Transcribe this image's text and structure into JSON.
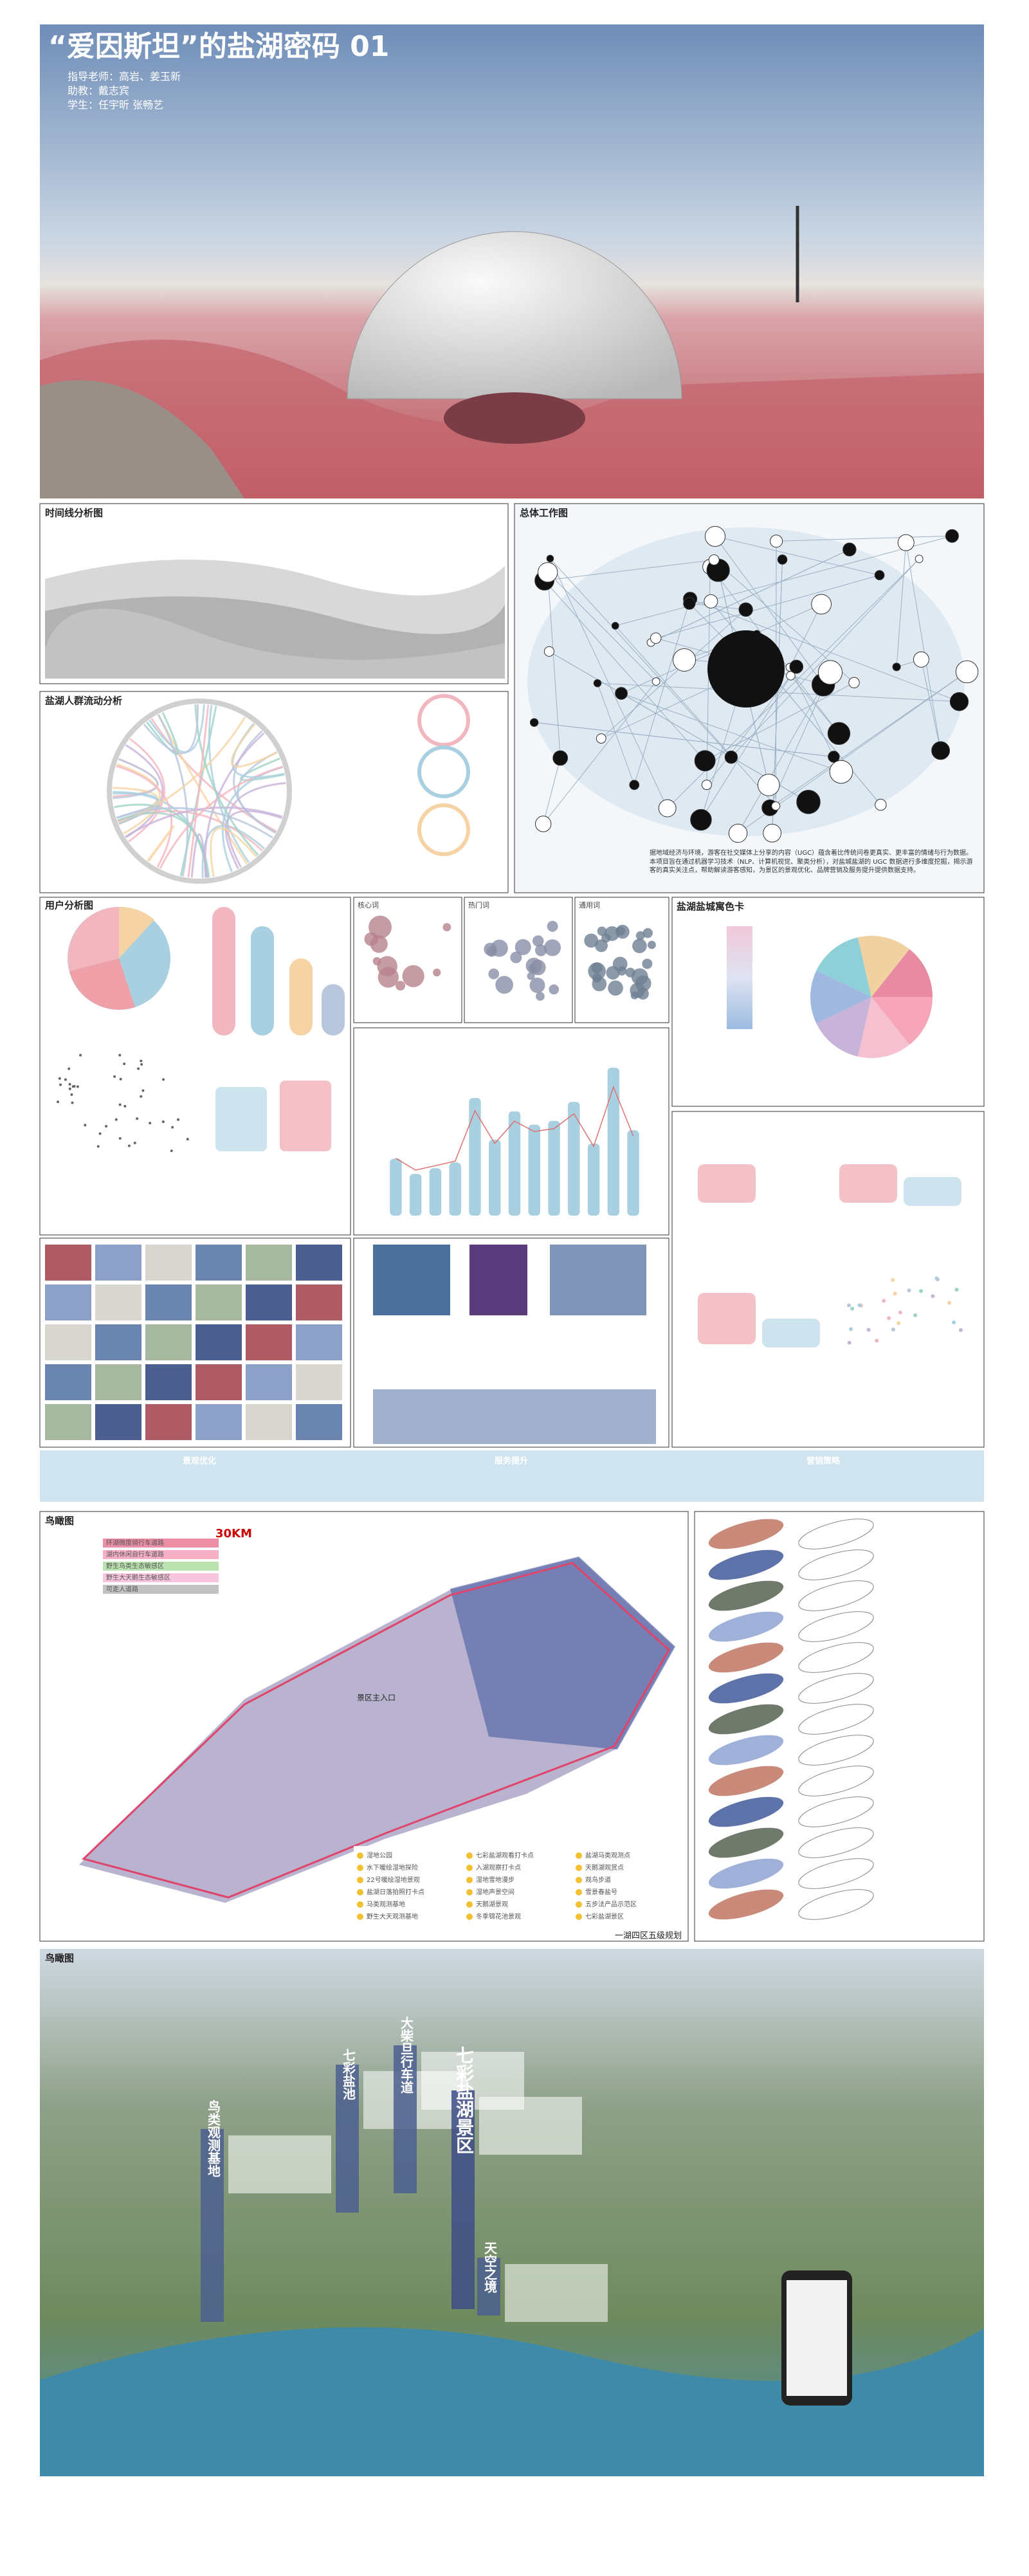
{
  "header": {
    "title": "“爱因斯坦”的盐湖密码 01",
    "credits": [
      "指导老师：高岩、姜玉新",
      "助教：戴志宾",
      "学生：任宇昕 张畅艺"
    ]
  },
  "panels": {
    "timeline": "时间线分析图",
    "crowd_flow": "盐湖人群流动分析",
    "overall": "总体工作图",
    "overall_text": "据地域经济与环境，游客在社交媒体上分享的内容（UGC）蕴含着比传统问卷更真实、更丰富的情绪与行为数据。本项目旨在通过机器学习技术（NLP、计算机视觉、聚类分析），对盐城盐湖的 UGC 数据进行多维度挖掘，揭示游客的真实关注点，帮助解读游客感知，为景区的景观优化、品牌营销及服务提升提供数据支持。",
    "user": "用户分析图",
    "core_words": "核心词",
    "hot_words": "热门词",
    "common_words": "通用词",
    "color_card": "盐湖盐城寓色卡",
    "banner": [
      "景观优化",
      "服务提升",
      "营销策略"
    ],
    "map_title": "鸟瞰图",
    "aerial_title": "鸟瞰图"
  },
  "bar_panel": {
    "values": [
      30,
      22,
      25,
      28,
      62,
      40,
      55,
      48,
      50,
      60,
      38,
      78,
      45
    ]
  },
  "map": {
    "scale": "30KM",
    "route_legend": [
      "环湖微度骑行车道路",
      "湖内休闲自行车道路",
      "野生鸟类生态敏感区",
      "野生大天鹅生态敏感区",
      "可走人道路"
    ],
    "entrance": "景区主入口",
    "legend": [
      "湿地公园",
      "水下暖绘湿地探险",
      "22号暖绘湿地景观",
      "盐湖日落拍照打卡点",
      "马类观测基地",
      "野生大天观测基地",
      "七彩盐湖观看打卡点",
      "入湖观察打卡点",
      "湿地雪地漫步",
      "湿地声景空间",
      "天鹅湖景观",
      "冬季锦花池景观",
      "盐湖马类观测点",
      "天鹅湖观赏点",
      "观鸟步道",
      "雪景春盐号",
      "五步法产品示范区",
      "七彩盐湖景区"
    ],
    "plan": "一湖四区五级规划"
  },
  "aerial": {
    "labels": [
      "鸟类观测基地",
      "七彩盐池",
      "大柴旦行车道",
      "七彩盐湖景区",
      "天空之境"
    ]
  }
}
